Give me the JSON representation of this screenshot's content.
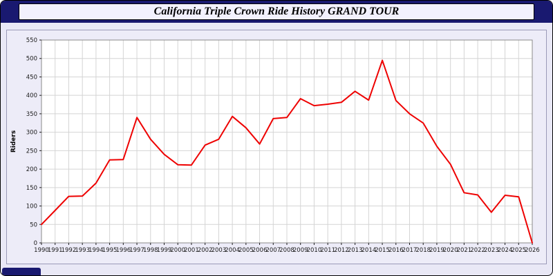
{
  "header": {
    "title": "California Triple Crown Ride History GRAND TOUR"
  },
  "colors": {
    "header_bg": "#191970",
    "title_box_bg": "#f2f1fd",
    "page_bg": "#e9e8f6",
    "plot_bg": "#ffffff",
    "grid": "#d4d4d4",
    "plot_border": "#8a8a8a",
    "line": "#ee0000",
    "tick_text": "#1a1a1a"
  },
  "chart_data": {
    "type": "line",
    "title": "California Triple Crown Ride History GRAND TOUR",
    "xlabel": "",
    "ylabel": "Riders",
    "ylim": [
      0,
      550
    ],
    "ytick_step": 50,
    "grid": true,
    "legend_position": "none",
    "line_color": "#ee0000",
    "x": [
      1990,
      1991,
      1992,
      1993,
      1994,
      1995,
      1996,
      1997,
      1998,
      1999,
      2000,
      2001,
      2002,
      2003,
      2004,
      2005,
      2006,
      2007,
      2008,
      2009,
      2010,
      2011,
      2012,
      2013,
      2014,
      2015,
      2016,
      2017,
      2018,
      2019,
      2020,
      2021,
      2022,
      2023,
      2024,
      2025,
      2026
    ],
    "values": [
      50,
      88,
      126,
      127,
      162,
      225,
      226,
      340,
      281,
      240,
      212,
      211,
      265,
      281,
      343,
      312,
      268,
      337,
      340,
      391,
      372,
      376,
      381,
      411,
      387,
      495,
      386,
      350,
      325,
      262,
      213,
      136,
      130,
      83,
      129,
      125,
      0
    ]
  }
}
